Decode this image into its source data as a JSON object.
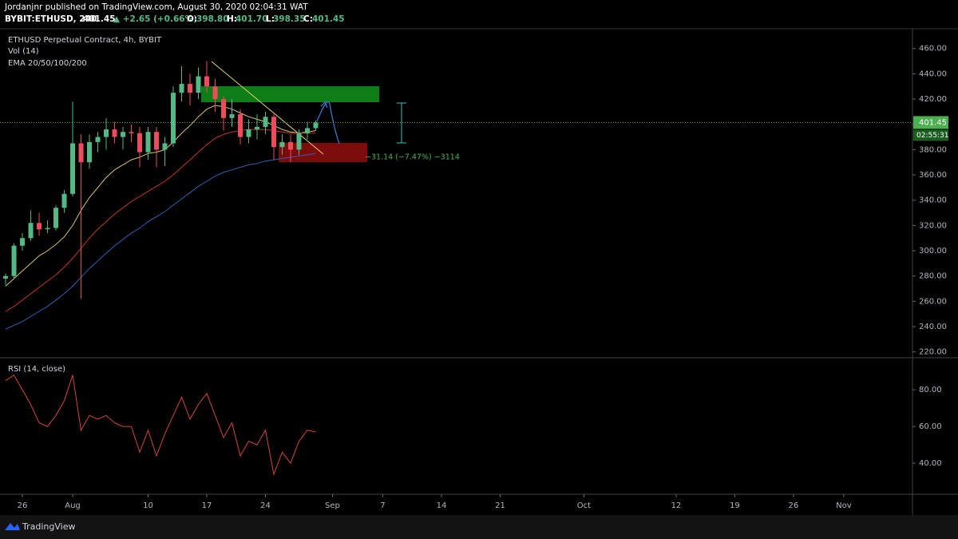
{
  "header": {
    "publisher": "Jordanjnr published on TradingView.com, August 30, 2020 02:04:31 WAT",
    "symbol": "BYBIT:ETHUSD, 240",
    "price": "401.45",
    "change": "▲ +2.65 (+0.66%)",
    "o_label": "O:",
    "o": "398.80",
    "h_label": "H:",
    "h": "401.70",
    "l_label": "L:",
    "l": "398.35",
    "c_label": "C:",
    "c": "401.45"
  },
  "footer": {
    "brand": "TradingView"
  },
  "chart_data": [
    {
      "type": "candlestick",
      "title": "ETHUSD Perpetual Contract, 4h, BYBIT",
      "indicators": [
        "Vol (14)",
        "EMA 20/50/100/200"
      ],
      "open": [
        278,
        280,
        304,
        310,
        322,
        317,
        318,
        334,
        345,
        385,
        370,
        386,
        390,
        396,
        390,
        394,
        393,
        378,
        394,
        380,
        385,
        425,
        432,
        425,
        438,
        430,
        420,
        405,
        408,
        390,
        396,
        398,
        406,
        382,
        386,
        380,
        393,
        397
      ],
      "high": [
        282,
        306,
        314,
        332,
        330,
        324,
        336,
        348,
        418,
        392,
        392,
        394,
        405,
        402,
        398,
        400,
        398,
        398,
        398,
        390,
        430,
        446,
        440,
        445,
        450,
        436,
        422,
        420,
        412,
        404,
        408,
        410,
        408,
        392,
        392,
        396,
        402,
        403
      ],
      "low": [
        273,
        278,
        300,
        308,
        312,
        314,
        316,
        330,
        343,
        262,
        365,
        378,
        380,
        385,
        380,
        386,
        366,
        372,
        366,
        367,
        382,
        418,
        415,
        420,
        425,
        410,
        395,
        398,
        384,
        385,
        388,
        392,
        372,
        376,
        370,
        376,
        388,
        395
      ],
      "close": [
        280,
        304,
        310,
        322,
        317,
        318,
        334,
        345,
        385,
        370,
        386,
        390,
        396,
        390,
        394,
        393,
        378,
        394,
        380,
        385,
        425,
        432,
        425,
        438,
        430,
        420,
        405,
        408,
        390,
        396,
        398,
        406,
        382,
        386,
        380,
        393,
        397,
        401.45
      ],
      "up_color": "#53b987",
      "down_color": "#eb4d5c",
      "lines": [
        {
          "color": "#d8c36b",
          "values": [
            272,
            278,
            284,
            290,
            296,
            300,
            305,
            311,
            320,
            332,
            342,
            350,
            358,
            364,
            368,
            372,
            374,
            377,
            378,
            380,
            386,
            393,
            399,
            406,
            412,
            415,
            414,
            412,
            409,
            406,
            404,
            402,
            399,
            396,
            394,
            393,
            394,
            395
          ]
        },
        {
          "color": "#c0392b",
          "values": [
            252,
            256,
            261,
            266,
            271,
            276,
            281,
            287,
            294,
            302,
            310,
            317,
            323,
            329,
            334,
            339,
            343,
            347,
            351,
            355,
            360,
            366,
            372,
            378,
            384,
            389,
            392,
            394,
            395,
            396,
            396,
            396,
            395,
            394,
            393,
            393,
            393,
            393
          ]
        },
        {
          "color": "#2f5fb3",
          "values": [
            238,
            241,
            244,
            248,
            252,
            256,
            261,
            266,
            272,
            279,
            286,
            292,
            298,
            304,
            309,
            314,
            318,
            323,
            327,
            331,
            336,
            341,
            346,
            351,
            355,
            359,
            362,
            364,
            366,
            368,
            369,
            371,
            372,
            373,
            374,
            375,
            376,
            377
          ]
        }
      ],
      "ylim": [
        216,
        475
      ],
      "yticks": [
        {
          "value": 220,
          "label": "220.00"
        },
        {
          "value": 240,
          "label": "240.00"
        },
        {
          "value": 260,
          "label": "260.00"
        },
        {
          "value": 280,
          "label": "280.00"
        },
        {
          "value": 300,
          "label": "300.00"
        },
        {
          "value": 320,
          "label": "320.00"
        },
        {
          "value": 340,
          "label": "340.00"
        },
        {
          "value": 360,
          "label": "360.00"
        },
        {
          "value": 380,
          "label": "380.00"
        },
        {
          "value": 400,
          "label": "400.00"
        },
        {
          "value": 420,
          "label": "420.00"
        },
        {
          "value": 440,
          "label": "440.00"
        },
        {
          "value": 460,
          "label": "460.00"
        }
      ],
      "last_price": 401.45,
      "last_color": "#4caf50",
      "countdown": "02:55:31",
      "measure_label": "−31.14 (−7.47%) −3114",
      "xlim": [
        -0.67,
        108.2
      ],
      "xticks": [
        {
          "value": 2,
          "label": "26"
        },
        {
          "value": 8,
          "label": "Aug"
        },
        {
          "value": 17,
          "label": "10"
        },
        {
          "value": 24,
          "label": "17"
        },
        {
          "value": 31,
          "label": "24"
        },
        {
          "value": 39,
          "label": "Sep"
        },
        {
          "value": 45,
          "label": "7"
        },
        {
          "value": 52,
          "label": "14"
        },
        {
          "value": 59,
          "label": "21"
        },
        {
          "value": 69,
          "label": "Oct"
        },
        {
          "value": 80,
          "label": "12"
        },
        {
          "value": 87,
          "label": "19"
        },
        {
          "value": 94,
          "label": "26"
        },
        {
          "value": 100,
          "label": "Nov"
        }
      ]
    },
    {
      "type": "line",
      "title": "RSI (14, close)",
      "color": "#d0453a",
      "values": [
        85,
        88,
        80,
        72,
        62,
        60,
        66,
        74,
        88,
        58,
        66,
        64,
        66,
        62,
        60,
        60,
        46,
        58,
        44,
        56,
        66,
        76,
        64,
        72,
        78,
        66,
        54,
        62,
        44,
        52,
        50,
        58,
        34,
        46,
        40,
        52,
        58,
        57
      ],
      "ylim": [
        23.5,
        97
      ],
      "yticks": [
        {
          "value": 40,
          "label": "40.00"
        },
        {
          "value": 60,
          "label": "60.00"
        },
        {
          "value": 80,
          "label": "80.00"
        }
      ]
    }
  ]
}
